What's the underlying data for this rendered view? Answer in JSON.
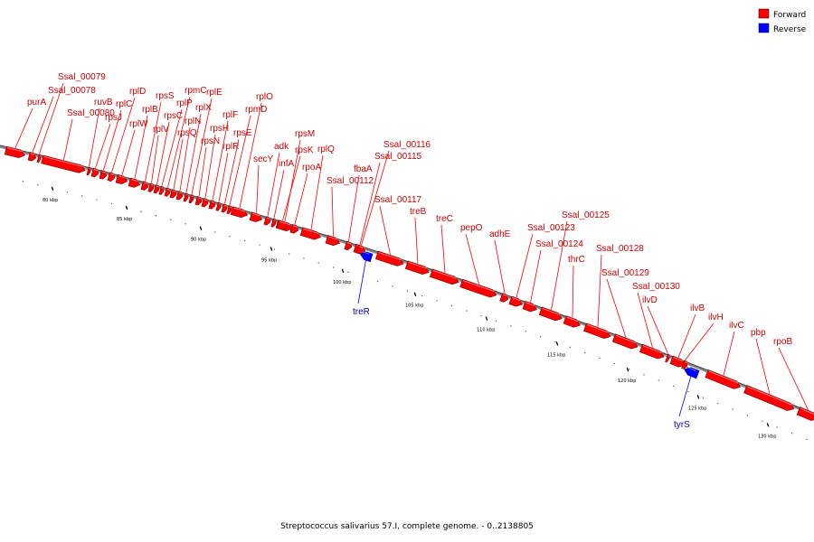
{
  "legend": {
    "forward": {
      "label": "Forward",
      "color": "#ff0000"
    },
    "reverse": {
      "label": "Reverse",
      "color": "#0000ff"
    }
  },
  "caption": "Streptococcus salivarius 57.I, complete genome. - 0..2138805",
  "kbp_ticks": [
    {
      "label": "80 kbp"
    },
    {
      "label": "85 kbp"
    },
    {
      "label": "90 kbp"
    },
    {
      "label": "95 kbp"
    },
    {
      "label": "100 kbp"
    },
    {
      "label": "105 kbp"
    },
    {
      "label": "110 kbp"
    },
    {
      "label": "115 kbp"
    },
    {
      "label": "120 kbp"
    },
    {
      "label": "125 kbp"
    },
    {
      "label": "130 kbp"
    }
  ],
  "genes": [
    {
      "label": "purA",
      "strand": "forward"
    },
    {
      "label": "Ssal_00078",
      "strand": "forward"
    },
    {
      "label": "Ssal_00079",
      "strand": "forward"
    },
    {
      "label": "Ssal_00080",
      "strand": "forward"
    },
    {
      "label": "ruvB",
      "strand": "forward"
    },
    {
      "label": "rpsJ",
      "strand": "forward"
    },
    {
      "label": "rplC",
      "strand": "forward"
    },
    {
      "label": "rplD",
      "strand": "forward"
    },
    {
      "label": "rplW",
      "strand": "forward"
    },
    {
      "label": "rplB",
      "strand": "forward"
    },
    {
      "label": "rpsS",
      "strand": "forward"
    },
    {
      "label": "rplV",
      "strand": "forward"
    },
    {
      "label": "rpsC",
      "strand": "forward"
    },
    {
      "label": "rplP",
      "strand": "forward"
    },
    {
      "label": "rpmC",
      "strand": "forward"
    },
    {
      "label": "rpsQ",
      "strand": "forward"
    },
    {
      "label": "rplN",
      "strand": "forward"
    },
    {
      "label": "rplX",
      "strand": "forward"
    },
    {
      "label": "rplE",
      "strand": "forward"
    },
    {
      "label": "rpsN",
      "strand": "forward"
    },
    {
      "label": "rpsH",
      "strand": "forward"
    },
    {
      "label": "rplF",
      "strand": "forward"
    },
    {
      "label": "rplR",
      "strand": "forward"
    },
    {
      "label": "rpsE",
      "strand": "forward"
    },
    {
      "label": "rpmD",
      "strand": "forward"
    },
    {
      "label": "rplO",
      "strand": "forward"
    },
    {
      "label": "secY",
      "strand": "forward"
    },
    {
      "label": "adk",
      "strand": "forward"
    },
    {
      "label": "infA",
      "strand": "forward"
    },
    {
      "label": "rpsM",
      "strand": "forward"
    },
    {
      "label": "rpsK",
      "strand": "forward"
    },
    {
      "label": "rpoA",
      "strand": "forward"
    },
    {
      "label": "rplQ",
      "strand": "forward"
    },
    {
      "label": "Ssal_00112",
      "strand": "forward"
    },
    {
      "label": "fbaA",
      "strand": "forward"
    },
    {
      "label": "Ssal_00115",
      "strand": "forward"
    },
    {
      "label": "Ssal_00116",
      "strand": "forward"
    },
    {
      "label": "Ssal_00117",
      "strand": "forward"
    },
    {
      "label": "treR",
      "strand": "reverse"
    },
    {
      "label": "treB",
      "strand": "forward"
    },
    {
      "label": "treC",
      "strand": "forward"
    },
    {
      "label": "pepO",
      "strand": "forward"
    },
    {
      "label": "adhE",
      "strand": "forward"
    },
    {
      "label": "Ssal_00123",
      "strand": "forward"
    },
    {
      "label": "Ssal_00124",
      "strand": "forward"
    },
    {
      "label": "Ssal_00125",
      "strand": "forward"
    },
    {
      "label": "thrC",
      "strand": "forward"
    },
    {
      "label": "Ssal_00128",
      "strand": "forward"
    },
    {
      "label": "Ssal_00129",
      "strand": "forward"
    },
    {
      "label": "Ssal_00130",
      "strand": "forward"
    },
    {
      "label": "ilvD",
      "strand": "forward"
    },
    {
      "label": "ilvB",
      "strand": "forward"
    },
    {
      "label": "ilvH",
      "strand": "forward"
    },
    {
      "label": "ilvC",
      "strand": "forward"
    },
    {
      "label": "tyrS",
      "strand": "reverse"
    },
    {
      "label": "pbp",
      "strand": "forward"
    },
    {
      "label": "rpoB",
      "strand": "forward"
    }
  ]
}
